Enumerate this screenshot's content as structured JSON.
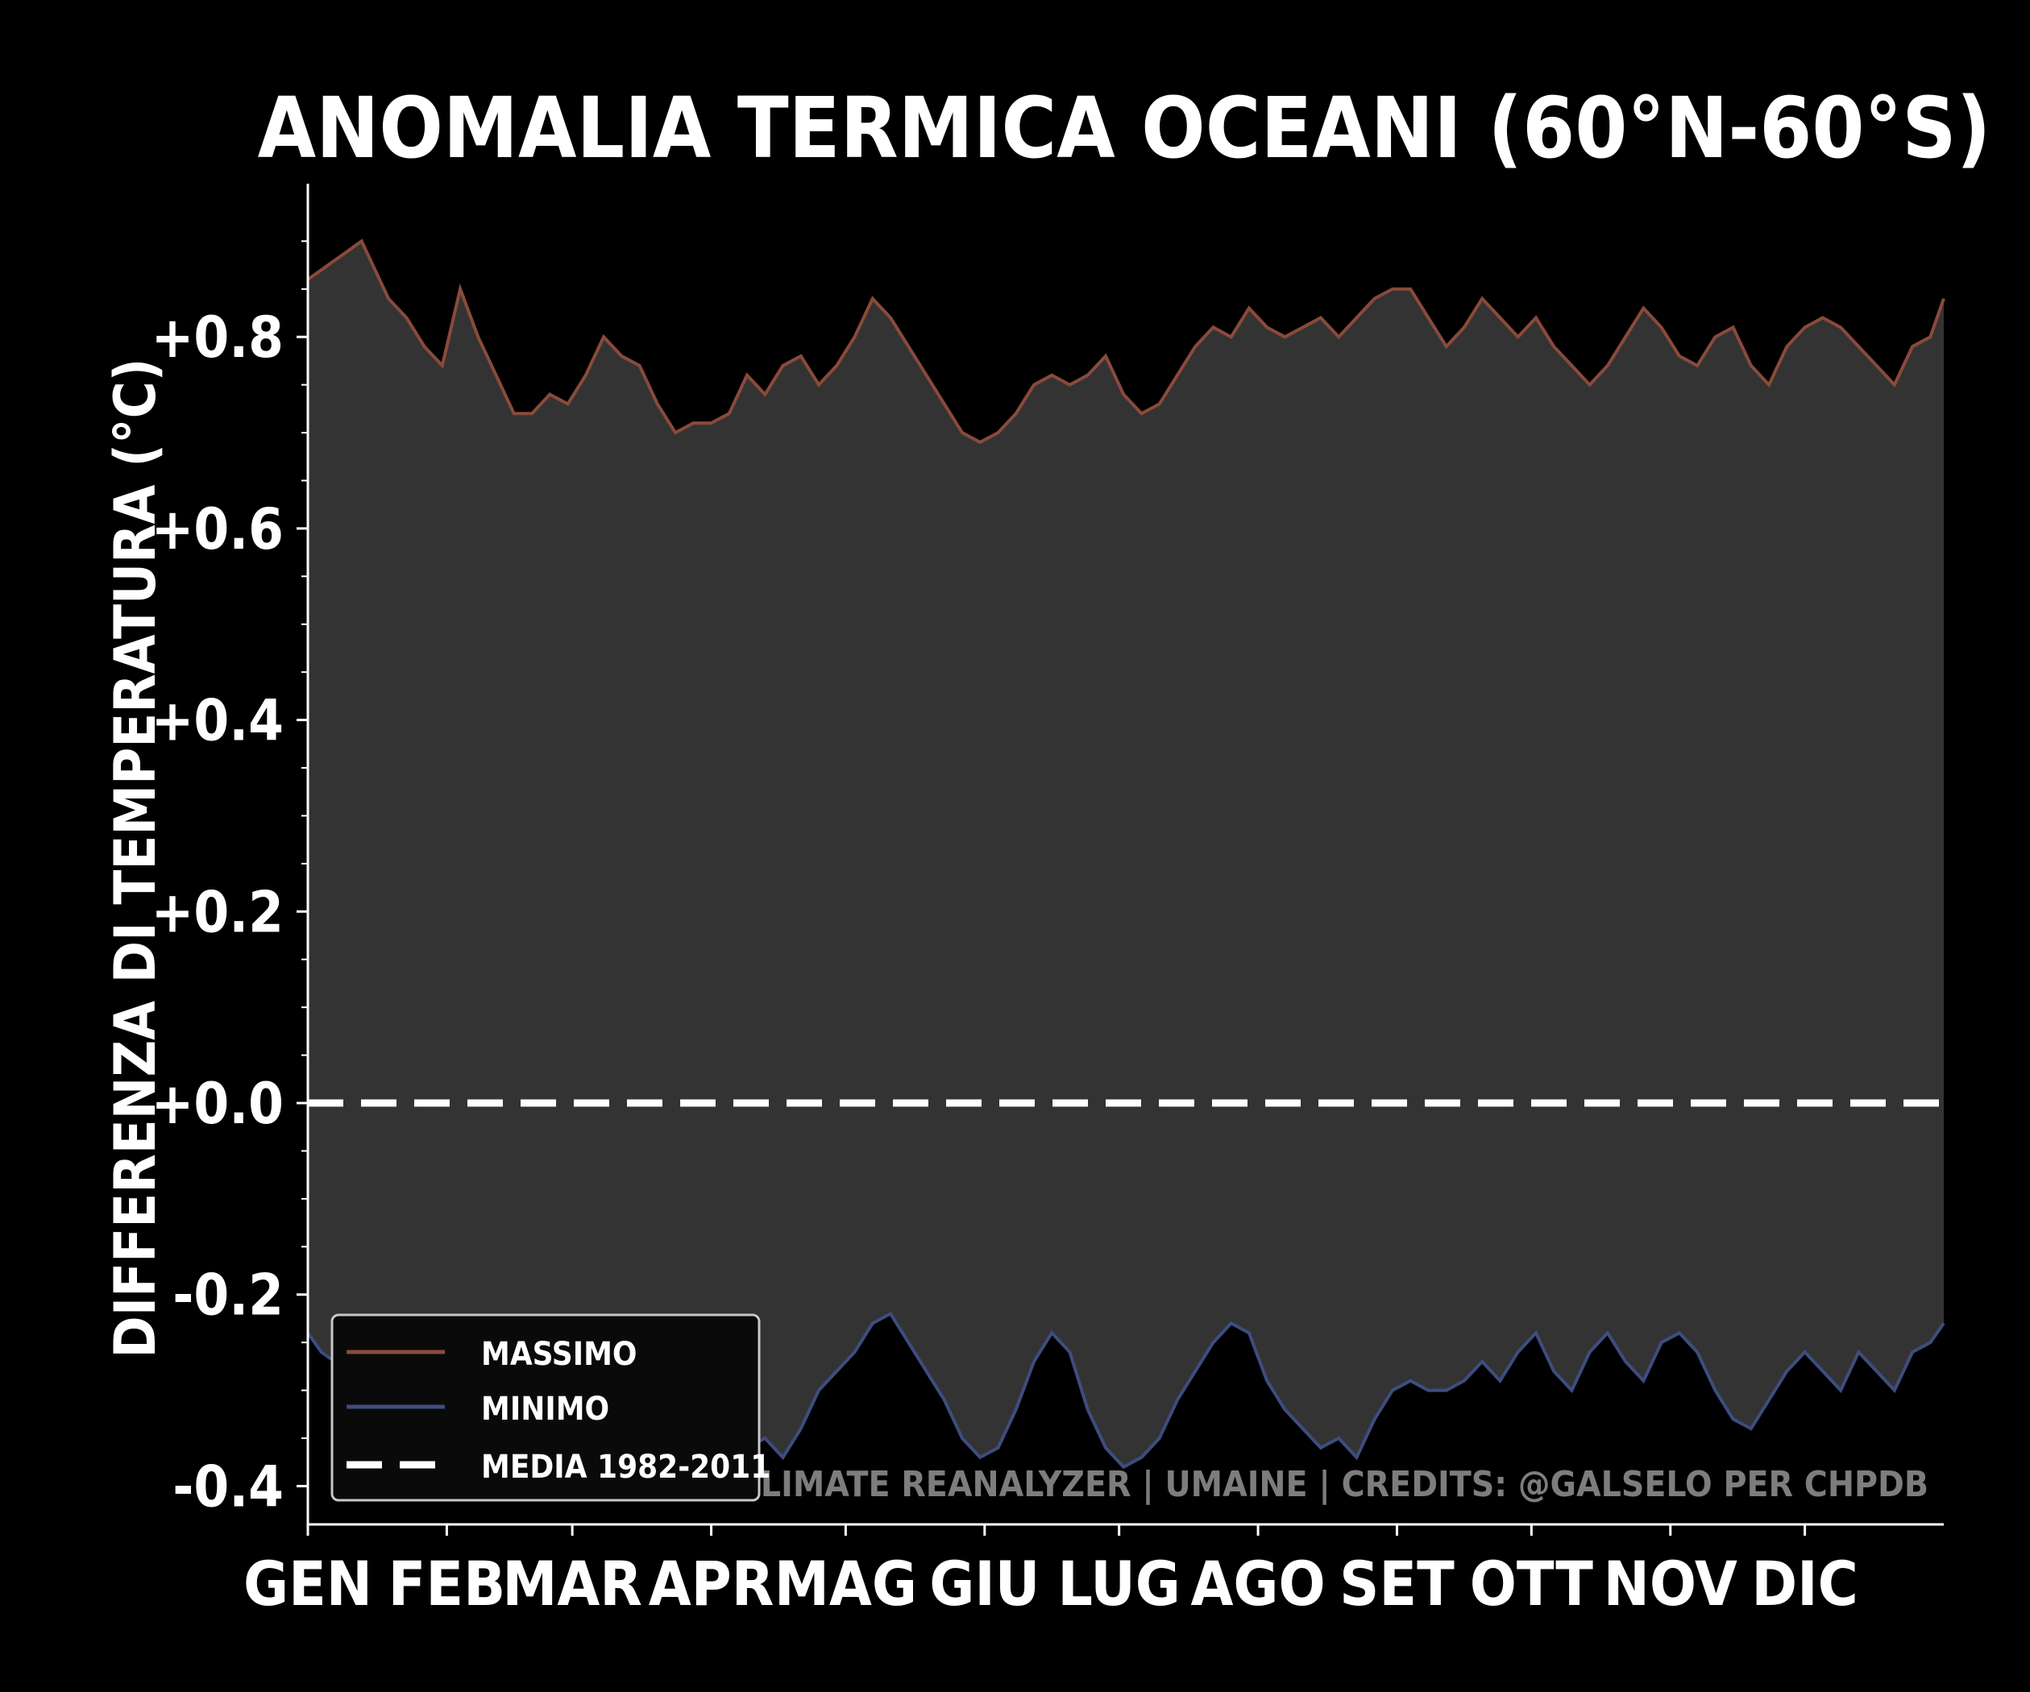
{
  "chart_data": {
    "type": "area",
    "title": "ANOMALIA TERMICA OCEANI (60°N-60°S)",
    "ylabel": "DIFFERENZA DI TEMPERATURA (°C)",
    "xlabel": "",
    "ylim": [
      -0.44,
      0.96
    ],
    "xlim": [
      0,
      365
    ],
    "yticks": [
      -0.4,
      -0.2,
      0.0,
      0.2,
      0.4,
      0.6,
      0.8
    ],
    "ytick_labels": [
      "-0.4",
      "-0.2",
      "+0.0",
      "+0.2",
      "+0.4",
      "+0.6",
      "+0.8"
    ],
    "month_labels": [
      "GEN",
      "FEB",
      "MAR",
      "APR",
      "MAG",
      "GIU",
      "LUG",
      "AGO",
      "SET",
      "OTT",
      "NOV",
      "DIC"
    ],
    "month_starts": [
      0,
      31,
      59,
      90,
      120,
      151,
      181,
      212,
      243,
      273,
      304,
      334
    ],
    "grid": false,
    "legend_position": "lower-left",
    "series": [
      {
        "name": "MASSIMO",
        "color": "#8a4a3a",
        "x": [
          0,
          3,
          6,
          9,
          12,
          15,
          18,
          22,
          26,
          30,
          34,
          38,
          42,
          46,
          50,
          54,
          58,
          62,
          66,
          70,
          74,
          78,
          82,
          86,
          90,
          94,
          98,
          102,
          106,
          110,
          114,
          118,
          122,
          126,
          130,
          134,
          138,
          142,
          146,
          150,
          154,
          158,
          162,
          166,
          170,
          174,
          178,
          182,
          186,
          190,
          194,
          198,
          202,
          206,
          210,
          214,
          218,
          222,
          226,
          230,
          234,
          238,
          242,
          246,
          250,
          254,
          258,
          262,
          266,
          270,
          274,
          278,
          282,
          286,
          290,
          294,
          298,
          302,
          306,
          310,
          314,
          318,
          322,
          326,
          330,
          334,
          338,
          342,
          346,
          350,
          354,
          358,
          362,
          365
        ],
        "values": [
          0.86,
          0.87,
          0.88,
          0.89,
          0.9,
          0.87,
          0.84,
          0.82,
          0.79,
          0.77,
          0.85,
          0.8,
          0.76,
          0.72,
          0.72,
          0.74,
          0.73,
          0.76,
          0.8,
          0.78,
          0.77,
          0.73,
          0.7,
          0.71,
          0.71,
          0.72,
          0.76,
          0.74,
          0.77,
          0.78,
          0.75,
          0.77,
          0.8,
          0.84,
          0.82,
          0.79,
          0.76,
          0.73,
          0.7,
          0.69,
          0.7,
          0.72,
          0.75,
          0.76,
          0.75,
          0.76,
          0.78,
          0.74,
          0.72,
          0.73,
          0.76,
          0.79,
          0.81,
          0.8,
          0.83,
          0.81,
          0.8,
          0.81,
          0.82,
          0.8,
          0.82,
          0.84,
          0.85,
          0.85,
          0.82,
          0.79,
          0.81,
          0.84,
          0.82,
          0.8,
          0.82,
          0.79,
          0.77,
          0.75,
          0.77,
          0.8,
          0.83,
          0.81,
          0.78,
          0.77,
          0.8,
          0.81,
          0.77,
          0.75,
          0.79,
          0.81,
          0.82,
          0.81,
          0.79,
          0.77,
          0.75,
          0.79,
          0.8,
          0.84
        ]
      },
      {
        "name": "MINIMO",
        "color": "#3e4d7f",
        "x": [
          0,
          3,
          6,
          9,
          12,
          15,
          18,
          22,
          26,
          30,
          34,
          38,
          42,
          46,
          50,
          54,
          58,
          62,
          66,
          70,
          74,
          78,
          82,
          86,
          90,
          94,
          98,
          102,
          106,
          110,
          114,
          118,
          122,
          126,
          130,
          134,
          138,
          142,
          146,
          150,
          154,
          158,
          162,
          166,
          170,
          174,
          178,
          182,
          186,
          190,
          194,
          198,
          202,
          206,
          210,
          214,
          218,
          222,
          226,
          230,
          234,
          238,
          242,
          246,
          250,
          254,
          258,
          262,
          266,
          270,
          274,
          278,
          282,
          286,
          290,
          294,
          298,
          302,
          306,
          310,
          314,
          318,
          322,
          326,
          330,
          334,
          338,
          342,
          346,
          350,
          354,
          358,
          362,
          365
        ],
        "values": [
          -0.24,
          -0.26,
          -0.27,
          -0.29,
          -0.3,
          -0.28,
          -0.27,
          -0.26,
          -0.27,
          -0.28,
          -0.26,
          -0.27,
          -0.25,
          -0.24,
          -0.26,
          -0.25,
          -0.26,
          -0.25,
          -0.24,
          -0.26,
          -0.25,
          -0.24,
          -0.26,
          -0.25,
          -0.27,
          -0.33,
          -0.36,
          -0.35,
          -0.37,
          -0.34,
          -0.3,
          -0.28,
          -0.26,
          -0.23,
          -0.22,
          -0.25,
          -0.28,
          -0.31,
          -0.35,
          -0.37,
          -0.36,
          -0.32,
          -0.27,
          -0.24,
          -0.26,
          -0.32,
          -0.36,
          -0.38,
          -0.37,
          -0.35,
          -0.31,
          -0.28,
          -0.25,
          -0.23,
          -0.24,
          -0.29,
          -0.32,
          -0.34,
          -0.36,
          -0.35,
          -0.37,
          -0.33,
          -0.3,
          -0.29,
          -0.3,
          -0.3,
          -0.29,
          -0.27,
          -0.29,
          -0.26,
          -0.24,
          -0.28,
          -0.3,
          -0.26,
          -0.24,
          -0.27,
          -0.29,
          -0.25,
          -0.24,
          -0.26,
          -0.3,
          -0.33,
          -0.34,
          -0.31,
          -0.28,
          -0.26,
          -0.28,
          -0.3,
          -0.26,
          -0.28,
          -0.3,
          -0.26,
          -0.25,
          -0.23
        ]
      },
      {
        "name": "MEDIA 1982-2011",
        "color": "#ffffff",
        "value": 0.0,
        "style": "dashed"
      }
    ],
    "fill_color": "#333333",
    "annotation": "DATI: CLIMATE REANALYZER | UMAINE | CREDITS: @GALSELO PER CHPDB"
  }
}
